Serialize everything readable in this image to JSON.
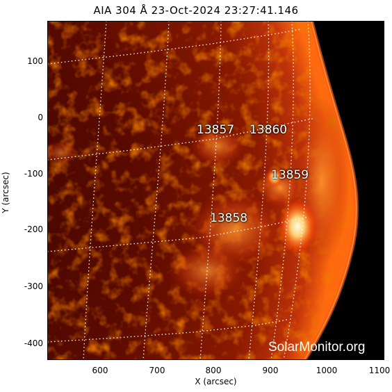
{
  "title": "AIA 304 Å 23-Oct-2024 23:27:41.146",
  "axes": {
    "xlabel": "X (arcsec)",
    "ylabel": "Y (arcsec)",
    "x_ticks": [
      "600",
      "700",
      "800",
      "900",
      "1000",
      "1100"
    ],
    "y_ticks": [
      "100",
      "0",
      "-100",
      "-200",
      "-300",
      "-400"
    ]
  },
  "regions": [
    "13857",
    "13860",
    "13859",
    "13858"
  ],
  "watermark": "SolarMonitor.org",
  "colors": {
    "background": "#000000",
    "disk_dark": "#3a0500",
    "disk_mid": "#a01d00",
    "disk_bright": "#ff7a1a",
    "flare": "#fff4e0",
    "grid": "#ffffff"
  }
}
